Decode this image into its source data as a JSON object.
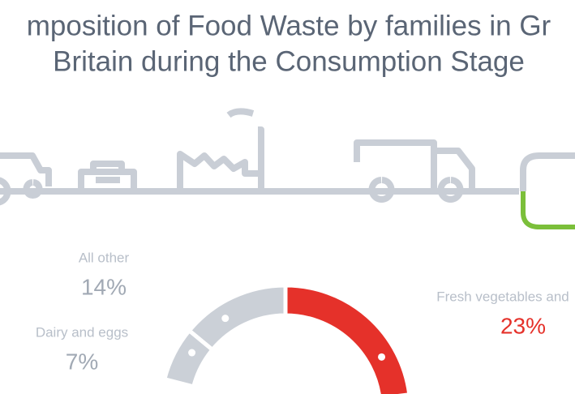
{
  "chart_data": {
    "type": "pie",
    "title": [
      "mposition of Food Waste by families in Gr",
      "Britain during the Consumption Stage"
    ],
    "categories": [
      "Fresh vegetables and",
      "All other",
      "Dairy and eggs"
    ],
    "values": [
      23,
      14,
      7
    ],
    "value_labels": [
      "23%",
      "14%",
      "7%"
    ],
    "colors": [
      "#e5312a",
      "#cbd0d7",
      "#cbd0d7"
    ]
  }
}
